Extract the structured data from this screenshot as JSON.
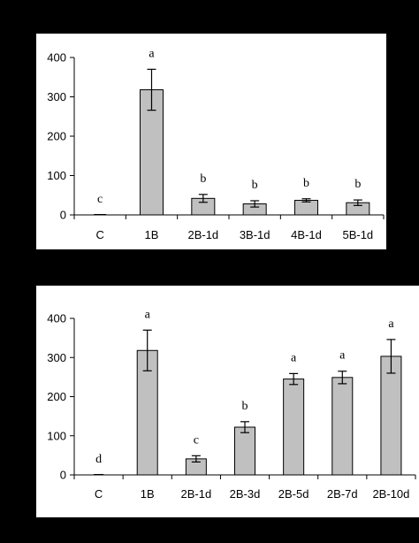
{
  "chart_data": [
    {
      "type": "bar",
      "categories": [
        "C",
        "1B",
        "2B-1d",
        "3B-1d",
        "4B-1d",
        "5B-1d"
      ],
      "values": [
        0,
        318,
        42,
        28,
        37,
        31
      ],
      "errors": [
        0,
        52,
        10,
        8,
        4,
        7
      ],
      "significance": [
        "c",
        "a",
        "b",
        "b",
        "b",
        "b"
      ],
      "yticks": [
        "0",
        "100",
        "200",
        "300",
        "400"
      ],
      "ylim": [
        0,
        400
      ],
      "bar_color": "#c0c0c0",
      "grid": false,
      "legend": "none"
    },
    {
      "type": "bar",
      "categories": [
        "C",
        "1B",
        "2B-1d",
        "2B-3d",
        "2B-5d",
        "2B-7d",
        "2B-10d"
      ],
      "values": [
        0,
        318,
        41,
        122,
        245,
        249,
        303
      ],
      "errors": [
        0,
        52,
        8,
        14,
        14,
        16,
        43
      ],
      "significance": [
        "d",
        "a",
        "c",
        "b",
        "a",
        "a",
        "a"
      ],
      "yticks": [
        "0",
        "100",
        "200",
        "300",
        "400"
      ],
      "ylim": [
        0,
        400
      ],
      "bar_color": "#c0c0c0",
      "grid": false,
      "legend": "none"
    }
  ]
}
